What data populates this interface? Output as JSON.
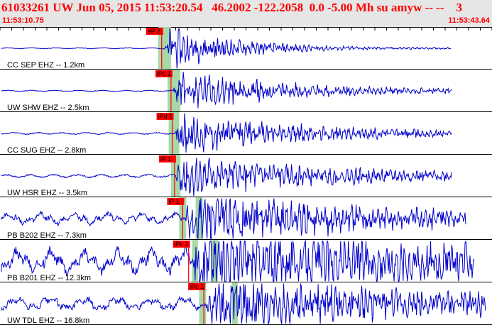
{
  "header": {
    "title": "61033261 UW Jun 05, 2015 11:53:20.54   46.2002 -122.2058  0.0 -5.00 Mh su amyw -- --    3",
    "start_time": "11:53:10.75",
    "end_time": "11:53:43.64"
  },
  "colors": {
    "header_bg": "#e6e6e6",
    "header_text": "#ff0000",
    "trace": "#0000cc",
    "pick_box": "#ff0000",
    "pick_line": "#ff0000",
    "window_band": "#a8d8a8",
    "tick": "#000000"
  },
  "chart_data": {
    "type": "line",
    "x_unit": "time",
    "xlim": [
      "11:53:10.75",
      "11:53:43.64"
    ],
    "traces": [
      {
        "label": "CC SEP EHZ -- 1.2km",
        "pick": "eP 2",
        "pick_time": 13.8,
        "windows": [
          [
            13.5,
            14.6
          ]
        ],
        "signal_start": 14.0,
        "signal_end": 37.8,
        "trace_end": 38.5,
        "noise": 0.03,
        "peak": 1.0,
        "decay": 6.0,
        "seed": 11
      },
      {
        "label": "UW SHW EHZ -- 2.5km",
        "pick": "iPc 1",
        "pick_time": 14.6,
        "windows": [
          [
            14.3,
            15.4
          ]
        ],
        "signal_start": 14.8,
        "signal_end": 38.2,
        "trace_end": 38.6,
        "noise": 0.04,
        "peak": 0.9,
        "decay": 10.0,
        "seed": 23
      },
      {
        "label": "CC SUG EHZ -- 2.8km",
        "pick": "iPd 1",
        "pick_time": 14.7,
        "windows": [
          [
            14.4,
            15.3
          ]
        ],
        "signal_start": 14.9,
        "signal_end": 38.0,
        "trace_end": 38.6,
        "noise": 0.06,
        "peak": 0.95,
        "decay": 11.0,
        "seed": 37
      },
      {
        "label": "UW HSR EHZ -- 3.5km",
        "pick": "iP 1",
        "pick_time": 14.9,
        "windows": [
          [
            14.6,
            15.4
          ]
        ],
        "signal_start": 15.0,
        "signal_end": 38.4,
        "trace_end": 38.6,
        "noise": 0.1,
        "peak": 1.0,
        "decay": 12.0,
        "seed": 41
      },
      {
        "label": "PB B202 EHZ -- 7.3km",
        "pick": "iP 1",
        "pick_time": 15.6,
        "windows": [
          [
            15.3,
            15.9
          ],
          [
            16.7,
            17.3
          ]
        ],
        "signal_start": 15.8,
        "signal_end": 39.8,
        "trace_end": 39.8,
        "noise": 0.35,
        "peak": 1.0,
        "decay": 14.0,
        "seed": 53
      },
      {
        "label": "PB B201 EHZ -- 12.3km",
        "pick": "iPc 1",
        "pick_time": 16.1,
        "windows": [
          [
            16.4,
            16.9
          ],
          [
            18.0,
            18.6
          ]
        ],
        "signal_start": 16.4,
        "signal_end": 40.5,
        "trace_end": 40.5,
        "noise": 0.7,
        "peak": 1.0,
        "decay": 20.0,
        "seed": 67
      },
      {
        "label": "UW TDL EHZ -- 16.8km",
        "pick": "iPc 1",
        "pick_time": 17.4,
        "windows": [
          [
            17.0,
            17.6
          ],
          [
            19.8,
            20.3
          ]
        ],
        "signal_start": 17.5,
        "signal_end": 41.5,
        "trace_end": 41.5,
        "noise": 0.4,
        "peak": 1.0,
        "decay": 16.0,
        "seed": 79
      }
    ],
    "grid": false
  }
}
